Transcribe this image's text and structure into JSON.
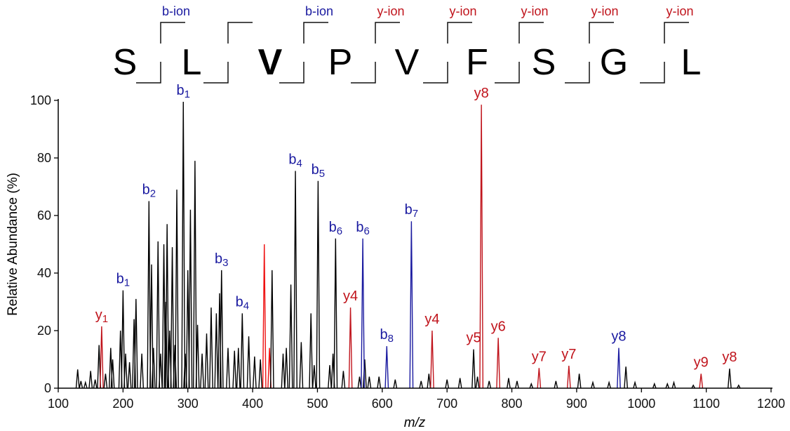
{
  "chart_data": {
    "type": "bar",
    "subtype": "mass-spectrum",
    "xlabel": "m/z",
    "ylabel": "Relative Abundance (%)",
    "xlim": [
      100,
      1200
    ],
    "ylim": [
      0,
      100
    ],
    "xticks": [
      100,
      200,
      300,
      400,
      500,
      600,
      700,
      800,
      900,
      1000,
      1100,
      1200
    ],
    "yticks": [
      0,
      20,
      40,
      60,
      80,
      100
    ],
    "grid": false,
    "colors": {
      "black": "#000000",
      "b_ion": "#1a1aa0",
      "y_ion": "#c0141c",
      "highlight": "#ee1111"
    },
    "sequence": {
      "residues": [
        {
          "aa": "S"
        },
        {
          "aa": "L"
        },
        {
          "aa": "V",
          "highlight": true
        },
        {
          "aa": "P"
        },
        {
          "aa": "V"
        },
        {
          "aa": "F"
        },
        {
          "aa": "S"
        },
        {
          "aa": "G"
        },
        {
          "aa": "L"
        }
      ],
      "cleavages": [
        {
          "label": "b-ion",
          "type": "b"
        },
        {
          "label": "",
          "type": ""
        },
        {
          "label": "b-ion",
          "type": "b"
        },
        {
          "label": "y-ion",
          "type": "y"
        },
        {
          "label": "y-ion",
          "type": "y"
        },
        {
          "label": "y-ion",
          "type": "y"
        },
        {
          "label": "y-ion",
          "type": "y"
        },
        {
          "label": "y-ion",
          "type": "y"
        }
      ]
    },
    "labeled_peaks": [
      {
        "mz": 167,
        "y": 21.5,
        "color": "y",
        "ion": "y",
        "n": "1",
        "sub": true
      },
      {
        "mz": 200,
        "y": 34,
        "color": "k",
        "ion": "b",
        "n": "1",
        "sub": true
      },
      {
        "mz": 240,
        "y": 65,
        "color": "k",
        "ion": "b",
        "n": "2",
        "sub": true
      },
      {
        "mz": 293,
        "y": 99.5,
        "color": "k",
        "ion": "b",
        "n": "1",
        "sub": true
      },
      {
        "mz": 352,
        "y": 41,
        "color": "k",
        "ion": "b",
        "n": "3",
        "sub": true
      },
      {
        "mz": 384,
        "y": 26,
        "color": "k",
        "ion": "b",
        "n": "4",
        "sub": true
      },
      {
        "mz": 466,
        "y": 75.5,
        "color": "k",
        "ion": "b",
        "n": "4",
        "sub": true
      },
      {
        "mz": 501,
        "y": 72,
        "color": "k",
        "ion": "b",
        "n": "5",
        "sub": true
      },
      {
        "mz": 528,
        "y": 52,
        "color": "k",
        "ion": "b",
        "n": "6",
        "sub": true
      },
      {
        "mz": 551,
        "y": 28,
        "color": "y",
        "ion": "y",
        "n": "4",
        "sub": false
      },
      {
        "mz": 570,
        "y": 52,
        "color": "b",
        "ion": "b",
        "n": "6",
        "sub": true
      },
      {
        "mz": 607,
        "y": 14.6,
        "color": "b",
        "ion": "b",
        "n": "8",
        "sub": true
      },
      {
        "mz": 645,
        "y": 58,
        "color": "b",
        "ion": "b",
        "n": "7",
        "sub": true
      },
      {
        "mz": 677,
        "y": 20,
        "color": "y",
        "ion": "y",
        "n": "4",
        "sub": false
      },
      {
        "mz": 741,
        "y": 13.5,
        "color": "k",
        "ion": "y",
        "n": "5",
        "sub": false
      },
      {
        "mz": 753,
        "y": 98.5,
        "color": "y",
        "ion": "y",
        "n": "8",
        "sub": false
      },
      {
        "mz": 779,
        "y": 17.5,
        "color": "y",
        "ion": "y",
        "n": "6",
        "sub": false
      },
      {
        "mz": 842,
        "y": 7,
        "color": "y",
        "ion": "y",
        "n": "7",
        "sub": false
      },
      {
        "mz": 888,
        "y": 7.8,
        "color": "y",
        "ion": "y",
        "n": "7",
        "sub": false
      },
      {
        "mz": 965,
        "y": 14,
        "color": "b",
        "ion": "y",
        "n": "8",
        "sub": false
      },
      {
        "mz": 1092,
        "y": 5,
        "color": "y",
        "ion": "y",
        "n": "9",
        "sub": false
      },
      {
        "mz": 1136,
        "y": 6.8,
        "color": "k",
        "ion": "y",
        "n": "8",
        "sub": false
      }
    ],
    "other_peaks": [
      {
        "mz": 130,
        "y": 6.5,
        "color": "k"
      },
      {
        "mz": 135,
        "y": 2.5,
        "color": "k"
      },
      {
        "mz": 142,
        "y": 2,
        "color": "k"
      },
      {
        "mz": 150,
        "y": 6,
        "color": "k"
      },
      {
        "mz": 157,
        "y": 3,
        "color": "k"
      },
      {
        "mz": 163,
        "y": 15,
        "color": "k"
      },
      {
        "mz": 173,
        "y": 5,
        "color": "k"
      },
      {
        "mz": 181,
        "y": 14,
        "color": "k"
      },
      {
        "mz": 184,
        "y": 10,
        "color": "k"
      },
      {
        "mz": 196,
        "y": 20,
        "color": "k"
      },
      {
        "mz": 204,
        "y": 12,
        "color": "k"
      },
      {
        "mz": 210,
        "y": 9,
        "color": "k"
      },
      {
        "mz": 217,
        "y": 24,
        "color": "k"
      },
      {
        "mz": 220,
        "y": 31,
        "color": "k"
      },
      {
        "mz": 229,
        "y": 12,
        "color": "k"
      },
      {
        "mz": 244,
        "y": 43,
        "color": "k"
      },
      {
        "mz": 247,
        "y": 14,
        "color": "k"
      },
      {
        "mz": 254,
        "y": 51,
        "color": "k"
      },
      {
        "mz": 258,
        "y": 12,
        "color": "k"
      },
      {
        "mz": 263,
        "y": 50,
        "color": "k"
      },
      {
        "mz": 266,
        "y": 30,
        "color": "k"
      },
      {
        "mz": 268,
        "y": 57,
        "color": "k"
      },
      {
        "mz": 272,
        "y": 20,
        "color": "k"
      },
      {
        "mz": 276,
        "y": 49,
        "color": "k"
      },
      {
        "mz": 280,
        "y": 15,
        "color": "k"
      },
      {
        "mz": 283,
        "y": 69,
        "color": "k"
      },
      {
        "mz": 296,
        "y": 12,
        "color": "k"
      },
      {
        "mz": 300,
        "y": 41,
        "color": "k"
      },
      {
        "mz": 304,
        "y": 62,
        "color": "k"
      },
      {
        "mz": 311,
        "y": 79,
        "color": "k"
      },
      {
        "mz": 315,
        "y": 22,
        "color": "k"
      },
      {
        "mz": 322,
        "y": 12,
        "color": "k"
      },
      {
        "mz": 329,
        "y": 19,
        "color": "k"
      },
      {
        "mz": 336,
        "y": 28,
        "color": "k"
      },
      {
        "mz": 344,
        "y": 26,
        "color": "k"
      },
      {
        "mz": 349,
        "y": 33,
        "color": "k"
      },
      {
        "mz": 362,
        "y": 14,
        "color": "k"
      },
      {
        "mz": 372,
        "y": 13,
        "color": "k"
      },
      {
        "mz": 378,
        "y": 14,
        "color": "k"
      },
      {
        "mz": 394,
        "y": 18,
        "color": "k"
      },
      {
        "mz": 403,
        "y": 11,
        "color": "k"
      },
      {
        "mz": 412,
        "y": 10,
        "color": "k"
      },
      {
        "mz": 418,
        "y": 50,
        "color": "r"
      },
      {
        "mz": 426,
        "y": 14,
        "color": "r"
      },
      {
        "mz": 430,
        "y": 41,
        "color": "k"
      },
      {
        "mz": 447,
        "y": 12,
        "color": "k"
      },
      {
        "mz": 452,
        "y": 14,
        "color": "k"
      },
      {
        "mz": 459,
        "y": 36,
        "color": "k"
      },
      {
        "mz": 475,
        "y": 16,
        "color": "k"
      },
      {
        "mz": 490,
        "y": 26,
        "color": "k"
      },
      {
        "mz": 495,
        "y": 8,
        "color": "k"
      },
      {
        "mz": 519,
        "y": 8,
        "color": "k"
      },
      {
        "mz": 524,
        "y": 12,
        "color": "k"
      },
      {
        "mz": 540,
        "y": 6,
        "color": "k"
      },
      {
        "mz": 565,
        "y": 4,
        "color": "k"
      },
      {
        "mz": 573,
        "y": 10,
        "color": "k"
      },
      {
        "mz": 580,
        "y": 4,
        "color": "k"
      },
      {
        "mz": 595,
        "y": 4,
        "color": "k"
      },
      {
        "mz": 620,
        "y": 3,
        "color": "k"
      },
      {
        "mz": 660,
        "y": 2.5,
        "color": "k"
      },
      {
        "mz": 672,
        "y": 5,
        "color": "k"
      },
      {
        "mz": 700,
        "y": 3,
        "color": "k"
      },
      {
        "mz": 720,
        "y": 3.5,
        "color": "k"
      },
      {
        "mz": 747,
        "y": 4,
        "color": "k"
      },
      {
        "mz": 765,
        "y": 2.5,
        "color": "k"
      },
      {
        "mz": 795,
        "y": 3.5,
        "color": "k"
      },
      {
        "mz": 808,
        "y": 2.5,
        "color": "k"
      },
      {
        "mz": 830,
        "y": 1.5,
        "color": "k"
      },
      {
        "mz": 868,
        "y": 2.5,
        "color": "k"
      },
      {
        "mz": 904,
        "y": 5,
        "color": "k"
      },
      {
        "mz": 925,
        "y": 2,
        "color": "k"
      },
      {
        "mz": 950,
        "y": 2,
        "color": "k"
      },
      {
        "mz": 976,
        "y": 7.5,
        "color": "k"
      },
      {
        "mz": 990,
        "y": 2,
        "color": "k"
      },
      {
        "mz": 1020,
        "y": 1.5,
        "color": "k"
      },
      {
        "mz": 1040,
        "y": 1.5,
        "color": "k"
      },
      {
        "mz": 1050,
        "y": 2,
        "color": "k"
      },
      {
        "mz": 1080,
        "y": 1,
        "color": "k"
      },
      {
        "mz": 1150,
        "y": 1,
        "color": "k"
      }
    ]
  }
}
